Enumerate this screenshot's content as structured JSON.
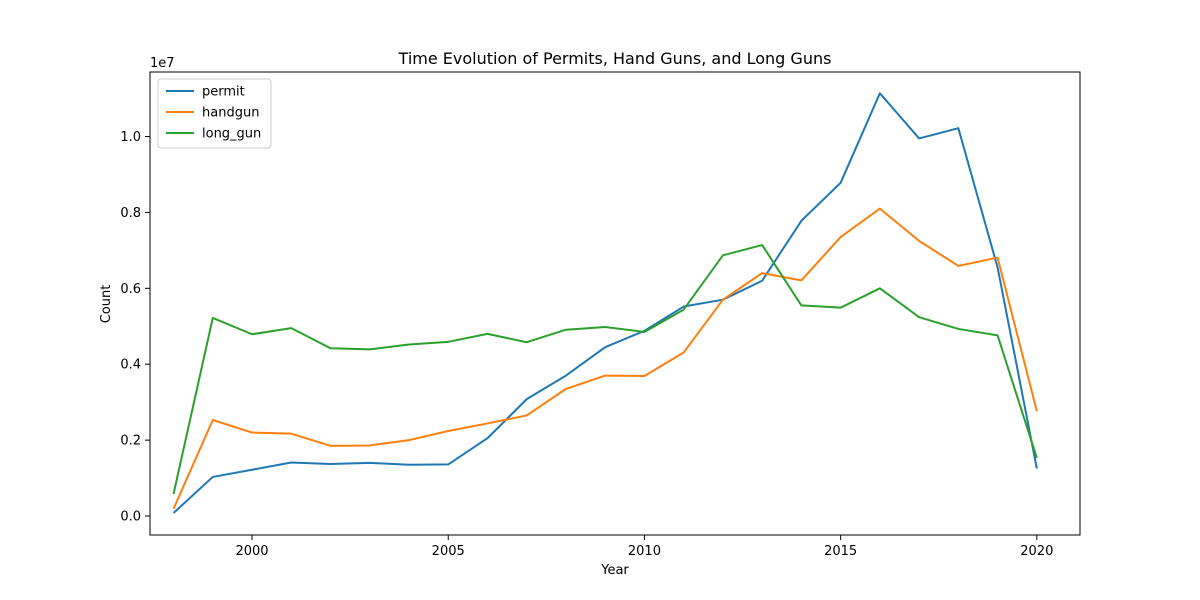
{
  "chart_data": {
    "type": "line",
    "title": "Time Evolution of Permits, Hand Guns, and Long Guns",
    "xlabel": "Year",
    "ylabel": "Count",
    "y_offset_text": "1e7",
    "y_scale": 10000000,
    "xlim": [
      1997.4,
      2021.1
    ],
    "ylim": [
      -0.05,
      1.17
    ],
    "x_ticks": [
      2000,
      2005,
      2010,
      2015,
      2020
    ],
    "x_tick_labels": [
      "2000",
      "2005",
      "2010",
      "2015",
      "2020"
    ],
    "y_ticks": [
      0.0,
      0.2,
      0.4,
      0.6,
      0.8,
      1.0
    ],
    "y_tick_labels": [
      "0.0",
      "0.2",
      "0.4",
      "0.6",
      "0.8",
      "1.0"
    ],
    "grid": false,
    "legend_position": "top-left",
    "x": [
      1998,
      1999,
      2000,
      2001,
      2002,
      2003,
      2004,
      2005,
      2006,
      2007,
      2008,
      2009,
      2010,
      2011,
      2012,
      2013,
      2014,
      2015,
      2016,
      2017,
      2018,
      2019,
      2020
    ],
    "series": [
      {
        "name": "permit",
        "color": "#1f77b4",
        "values": [
          0.008,
          0.103,
          0.122,
          0.141,
          0.137,
          0.14,
          0.135,
          0.136,
          0.205,
          0.308,
          0.37,
          0.445,
          0.488,
          0.552,
          0.57,
          0.62,
          0.778,
          0.878,
          1.114,
          0.995,
          1.022,
          0.655,
          0.125
        ]
      },
      {
        "name": "handgun",
        "color": "#ff7f0e",
        "values": [
          0.019,
          0.253,
          0.22,
          0.217,
          0.185,
          0.186,
          0.2,
          0.224,
          0.244,
          0.265,
          0.335,
          0.37,
          0.369,
          0.431,
          0.57,
          0.64,
          0.621,
          0.735,
          0.81,
          0.725,
          0.659,
          0.681,
          0.276
        ]
      },
      {
        "name": "long_gun",
        "color": "#2ca02c",
        "values": [
          0.058,
          0.522,
          0.479,
          0.495,
          0.442,
          0.439,
          0.452,
          0.459,
          0.48,
          0.458,
          0.491,
          0.498,
          0.485,
          0.544,
          0.687,
          0.714,
          0.555,
          0.549,
          0.6,
          0.524,
          0.493,
          0.476,
          0.153
        ]
      }
    ]
  }
}
